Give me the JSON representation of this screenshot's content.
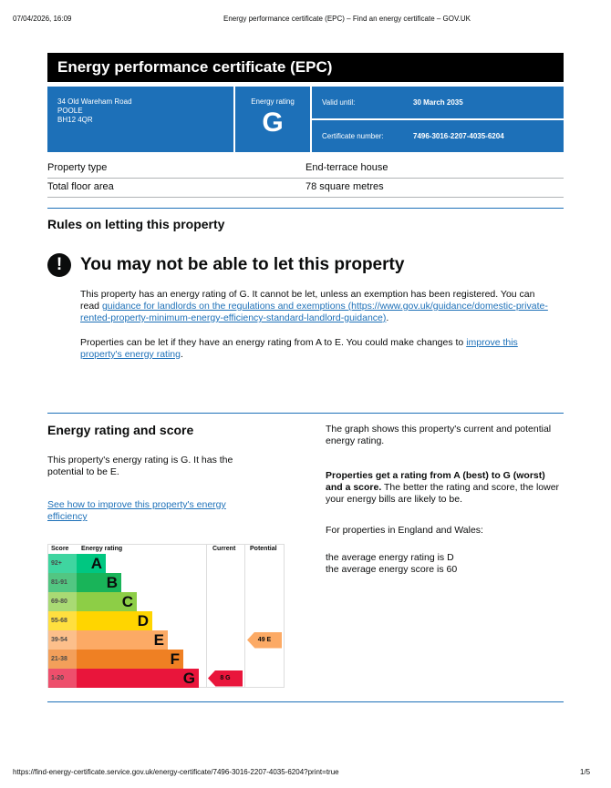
{
  "browser": {
    "datetime": "07/04/2026, 16:09",
    "page_title": "Energy performance certificate (EPC) – Find an energy certificate – GOV.UK",
    "url": "https://find-energy-certificate.service.gov.uk/energy-certificate/7496-3016-2207-4035-6204?print=true",
    "page": "1/5"
  },
  "title": "Energy performance certificate (EPC)",
  "address": [
    "34 Old Wareham Road",
    "POOLE",
    "BH12 4QR"
  ],
  "energy_rating": {
    "label": "Energy rating",
    "value": "G"
  },
  "valid_until": {
    "label": "Valid until:",
    "value": "30 March 2035"
  },
  "certificate_number": {
    "label": "Certificate number:",
    "value": "7496-3016-2207-4035-6204"
  },
  "property": [
    {
      "label": "Property type",
      "value": "End-terrace house"
    },
    {
      "label": "Total floor area",
      "value": "78 square metres"
    }
  ],
  "letting": {
    "heading": "Rules on letting this property",
    "warning": "You may not be able to let this property",
    "p1_text": "This property has an energy rating of G. It cannot be let, unless an exemption has been registered. You can read ",
    "p1_link": "guidance for landlords on the regulations and exemptions (https://www.gov.uk/guidance/domestic-private-rented-property-minimum-energy-efficiency-standard-landlord-guidance)",
    "p1_end": ".",
    "p2_text": "Properties can be let if they have an energy rating from A to E. You could make changes to ",
    "p2_link": "improve this property's energy rating",
    "p2_end": "."
  },
  "score": {
    "heading": "Energy rating and score",
    "intro": "This property's energy rating is G. It has the potential to be E.",
    "link": "See how to improve this property's energy efficiency",
    "right_p1": "The graph shows this property's current and potential energy rating.",
    "right_p2_bold": "Properties get a rating from A (best) to G (worst) and a score.",
    "right_p2": " The better the rating and score, the lower your energy bills are likely to be.",
    "right_p3": "For properties in England and Wales:",
    "avg1": "the average energy rating is D",
    "avg2": "the average energy score is 60"
  },
  "chart_data": {
    "type": "table",
    "headers": [
      "Score",
      "Energy rating",
      "Current",
      "Potential"
    ],
    "bands": [
      {
        "score": "92+",
        "rating": "A",
        "color": "#00c781"
      },
      {
        "score": "81-91",
        "rating": "B",
        "color": "#19b459"
      },
      {
        "score": "69-80",
        "rating": "C",
        "color": "#8dce46"
      },
      {
        "score": "55-68",
        "rating": "D",
        "color": "#ffd500"
      },
      {
        "score": "39-54",
        "rating": "E",
        "color": "#fcaa65"
      },
      {
        "score": "21-38",
        "rating": "F",
        "color": "#ef8023"
      },
      {
        "score": "1-20",
        "rating": "G",
        "color": "#e9153b"
      }
    ],
    "current": {
      "score": 8,
      "rating": "G",
      "label": "8 G"
    },
    "potential": {
      "score": 49,
      "rating": "E",
      "label": "49 E"
    }
  }
}
